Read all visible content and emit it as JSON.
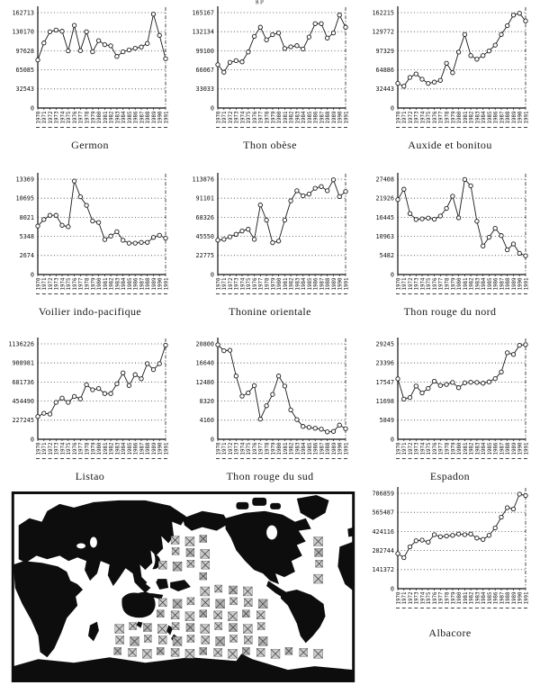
{
  "page": {
    "top_fragment": "g p"
  },
  "map": {
    "type": "pacific-centered-world-map",
    "overlay": "hatched-catch-grid"
  },
  "chart_data": [
    {
      "type": "line",
      "title": "Germon",
      "xlabel": "",
      "ylabel": "",
      "ylim": [
        0,
        162713
      ],
      "y_ticks": [
        0,
        32543,
        65085,
        97628,
        130170,
        162713
      ],
      "grid": "dotted-horizontal",
      "marker": "open-circle",
      "categories": [
        "1970",
        "1971",
        "1972",
        "1973",
        "1974",
        "1975",
        "1976",
        "1977",
        "1978",
        "1979",
        "1980",
        "1981",
        "1982",
        "1983",
        "1984",
        "1985",
        "1986",
        "1987",
        "1988",
        "1989",
        "1990",
        "1991"
      ],
      "values": [
        82000,
        111000,
        130000,
        133000,
        131000,
        97500,
        141000,
        98000,
        130000,
        96000,
        115000,
        108000,
        106000,
        88000,
        96000,
        99000,
        102000,
        104000,
        110000,
        160000,
        124000,
        84000
      ]
    },
    {
      "type": "line",
      "title": "Thon obèse",
      "xlabel": "",
      "ylabel": "",
      "ylim": [
        0,
        165167
      ],
      "y_ticks": [
        0,
        33033,
        66067,
        99100,
        132134,
        165167
      ],
      "grid": "dotted-horizontal",
      "marker": "open-circle",
      "categories": [
        "1970",
        "1971",
        "1972",
        "1973",
        "1974",
        "1975",
        "1976",
        "1977",
        "1978",
        "1979",
        "1980",
        "1981",
        "1982",
        "1983",
        "1984",
        "1985",
        "1986",
        "1987",
        "1988",
        "1989",
        "1990",
        "1991"
      ],
      "values": [
        75000,
        62000,
        79000,
        82000,
        80000,
        97000,
        124000,
        140000,
        118000,
        127000,
        130000,
        103000,
        106000,
        108000,
        102000,
        123000,
        146000,
        146000,
        121000,
        130000,
        161000,
        140000
      ]
    },
    {
      "type": "line",
      "title": "Auxide et bonitou",
      "xlabel": "",
      "ylabel": "",
      "ylim": [
        0,
        162215
      ],
      "y_ticks": [
        0,
        32443,
        64886,
        97329,
        129772,
        162215
      ],
      "grid": "dotted-horizontal",
      "marker": "open-circle",
      "categories": [
        "1970",
        "1971",
        "1972",
        "1973",
        "1974",
        "1975",
        "1976",
        "1977",
        "1978",
        "1979",
        "1980",
        "1981",
        "1982",
        "1983",
        "1984",
        "1985",
        "1986",
        "1987",
        "1988",
        "1989",
        "1990",
        "1991"
      ],
      "values": [
        42000,
        37000,
        52000,
        58000,
        49000,
        42000,
        44000,
        47000,
        76000,
        60000,
        95000,
        125000,
        89000,
        83000,
        89000,
        97000,
        107000,
        125000,
        140000,
        158000,
        161000,
        148000
      ]
    },
    {
      "type": "line",
      "title": "Voilier indo-pacifique",
      "xlabel": "",
      "ylabel": "",
      "ylim": [
        0,
        13369
      ],
      "y_ticks": [
        0,
        2674,
        5348,
        8021,
        10695,
        13369
      ],
      "grid": "dotted-horizontal",
      "marker": "open-circle",
      "categories": [
        "1970",
        "1971",
        "1972",
        "1973",
        "1974",
        "1975",
        "1976",
        "1977",
        "1978",
        "1979",
        "1980",
        "1981",
        "1982",
        "1983",
        "1984",
        "1985",
        "1986",
        "1987",
        "1988",
        "1989",
        "1990",
        "1991"
      ],
      "values": [
        6800,
        7700,
        8300,
        8300,
        6900,
        6700,
        13100,
        10900,
        9700,
        7500,
        7300,
        4900,
        5400,
        6000,
        4800,
        4400,
        4400,
        4500,
        4500,
        5200,
        5500,
        5100
      ]
    },
    {
      "type": "line",
      "title": "Thonine orientale",
      "xlabel": "",
      "ylabel": "",
      "ylim": [
        0,
        113876
      ],
      "y_ticks": [
        0,
        22775,
        45550,
        68326,
        91101,
        113876
      ],
      "grid": "dotted-horizontal",
      "marker": "open-circle",
      "categories": [
        "1970",
        "1971",
        "1972",
        "1973",
        "1974",
        "1975",
        "1976",
        "1977",
        "1978",
        "1979",
        "1980",
        "1981",
        "1982",
        "1983",
        "1984",
        "1985",
        "1986",
        "1987",
        "1988",
        "1989",
        "1990",
        "1991"
      ],
      "values": [
        41000,
        42000,
        45000,
        48000,
        52000,
        54000,
        42000,
        83000,
        65000,
        38000,
        40000,
        65000,
        88000,
        100000,
        94000,
        96000,
        103000,
        105000,
        100000,
        113000,
        93000,
        99000
      ]
    },
    {
      "type": "line",
      "title": "Thon rouge du nord",
      "xlabel": "",
      "ylabel": "",
      "ylim": [
        0,
        27408
      ],
      "y_ticks": [
        0,
        5482,
        10963,
        16445,
        21926,
        27408
      ],
      "grid": "dotted-horizontal",
      "marker": "open-circle",
      "categories": [
        "1970",
        "1971",
        "1972",
        "1973",
        "1974",
        "1975",
        "1976",
        "1977",
        "1978",
        "1979",
        "1980",
        "1981",
        "1982",
        "1983",
        "1984",
        "1985",
        "1986",
        "1987",
        "1988",
        "1989",
        "1990",
        "1991"
      ],
      "values": [
        21500,
        24500,
        17500,
        15800,
        16000,
        16200,
        15900,
        16800,
        19000,
        22500,
        16300,
        27300,
        25500,
        15300,
        8200,
        10700,
        13300,
        11200,
        7100,
        8800,
        6100,
        5400
      ]
    },
    {
      "type": "line",
      "title": "Listao",
      "xlabel": "",
      "ylabel": "",
      "ylim": [
        0,
        1136226
      ],
      "y_ticks": [
        0,
        227245,
        454490,
        681736,
        908981,
        1136226
      ],
      "grid": "dotted-horizontal",
      "marker": "open-circle",
      "categories": [
        "1970",
        "1971",
        "1972",
        "1973",
        "1974",
        "1975",
        "1976",
        "1977",
        "1978",
        "1979",
        "1980",
        "1981",
        "1982",
        "1983",
        "1984",
        "1985",
        "1986",
        "1987",
        "1988",
        "1989",
        "1990",
        "1991"
      ],
      "values": [
        270000,
        310000,
        300000,
        440000,
        490000,
        440000,
        510000,
        480000,
        650000,
        590000,
        605000,
        545000,
        545000,
        660000,
        790000,
        640000,
        770000,
        720000,
        900000,
        830000,
        900000,
        1120000
      ]
    },
    {
      "type": "line",
      "title": "Thon rouge du sud",
      "xlabel": "",
      "ylabel": "",
      "ylim": [
        0,
        20800
      ],
      "y_ticks": [
        0,
        4160,
        8320,
        12480,
        16640,
        20800
      ],
      "grid": "dotted-horizontal",
      "marker": "open-circle",
      "categories": [
        "1970",
        "1971",
        "1972",
        "1973",
        "1974",
        "1975",
        "1976",
        "1977",
        "1978",
        "1979",
        "1980",
        "1981",
        "1982",
        "1983",
        "1984",
        "1985",
        "1986",
        "1987",
        "1988",
        "1989",
        "1990",
        "1991"
      ],
      "values": [
        20600,
        19300,
        19400,
        13800,
        9400,
        10100,
        11700,
        4400,
        7300,
        9800,
        13800,
        11600,
        6400,
        4300,
        2800,
        2600,
        2400,
        2200,
        1600,
        1700,
        3100,
        2300
      ]
    },
    {
      "type": "line",
      "title": "Espadon",
      "xlabel": "",
      "ylabel": "",
      "ylim": [
        0,
        29245
      ],
      "y_ticks": [
        0,
        5849,
        11698,
        17547,
        23396,
        29245
      ],
      "grid": "dotted-horizontal",
      "marker": "open-circle",
      "categories": [
        "1970",
        "1971",
        "1972",
        "1973",
        "1974",
        "1975",
        "1976",
        "1977",
        "1978",
        "1979",
        "1980",
        "1981",
        "1982",
        "1983",
        "1984",
        "1985",
        "1986",
        "1987",
        "1988",
        "1989",
        "1990",
        "1991"
      ],
      "values": [
        18500,
        12300,
        12800,
        16300,
        14200,
        15600,
        17800,
        16500,
        16800,
        17400,
        15800,
        17300,
        17500,
        17400,
        17200,
        17600,
        18600,
        20600,
        26500,
        26000,
        28800,
        29000
      ]
    },
    {
      "type": "line",
      "title": "Albacore",
      "xlabel": "",
      "ylabel": "",
      "ylim": [
        0,
        706859
      ],
      "y_ticks": [
        0,
        141372,
        282744,
        424116,
        565487,
        706859
      ],
      "grid": "dotted-horizontal",
      "marker": "open-circle",
      "categories": [
        "1970",
        "1971",
        "1972",
        "1973",
        "1974",
        "1975",
        "1976",
        "1977",
        "1978",
        "1979",
        "1980",
        "1981",
        "1982",
        "1983",
        "1984",
        "1985",
        "1986",
        "1987",
        "1988",
        "1989",
        "1990",
        "1991"
      ],
      "values": [
        260000,
        230000,
        310000,
        355000,
        360000,
        345000,
        400000,
        385000,
        390000,
        395000,
        405000,
        400000,
        405000,
        375000,
        365000,
        395000,
        450000,
        530000,
        600000,
        590000,
        700000,
        690000
      ]
    }
  ]
}
